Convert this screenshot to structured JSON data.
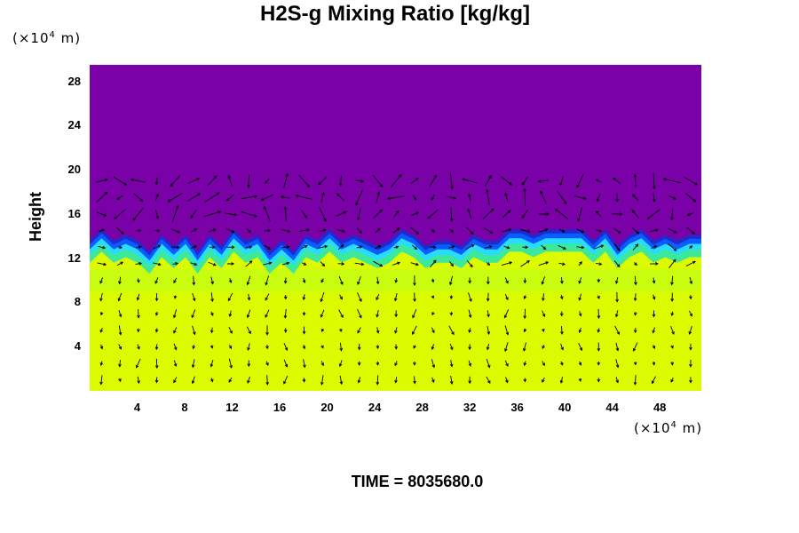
{
  "chart_data": {
    "type": "heatmap",
    "title": "H2S-g Mixing Ratio [kg/kg]",
    "ylabel": "Height",
    "y_unit": {
      "prefix": "(×10",
      "exp": "4",
      "suffix": " m)"
    },
    "x_unit": {
      "prefix": "(×10",
      "exp": "4",
      "suffix": " m)"
    },
    "xlim": [
      0,
      51.5
    ],
    "ylim": [
      0,
      29.5
    ],
    "x_ticks": [
      4,
      8,
      12,
      16,
      20,
      24,
      28,
      32,
      36,
      40,
      44,
      48
    ],
    "y_ticks": [
      4,
      8,
      12,
      16,
      20,
      24,
      28
    ],
    "footer": "TIME = 8035680.0",
    "colors": {
      "upper": "#7a00a8",
      "lower": "#dcfa00",
      "mid": "#b8ff1e",
      "band_green": "#3ee89a",
      "band_cyan": "#28dcff",
      "band_blue": "#0a5cff",
      "band_dark": "#1e2ad0",
      "vectors": "#000000"
    },
    "interface_height": [
      13.0,
      14.0,
      13.0,
      13.5,
      13.0,
      12.0,
      13.5,
      12.5,
      13.5,
      12.0,
      13.5,
      12.5,
      14.0,
      13.0,
      13.5,
      12.0,
      13.0,
      12.0,
      13.5,
      13.0,
      14.0,
      13.0,
      13.5,
      13.0,
      12.5,
      13.0,
      14.0,
      13.5,
      12.5,
      13.0,
      13.0,
      12.5,
      13.5,
      13.0,
      13.0,
      14.0,
      14.0,
      13.5,
      14.0,
      14.0,
      14.0,
      14.0,
      13.0,
      14.0,
      12.5,
      13.5,
      14.0,
      13.0,
      13.5,
      13.0,
      13.5,
      13.5
    ]
  },
  "page": {
    "title": "H2S-g Mixing Ratio [kg/kg]",
    "time_label": "TIME = 8035680.0"
  }
}
